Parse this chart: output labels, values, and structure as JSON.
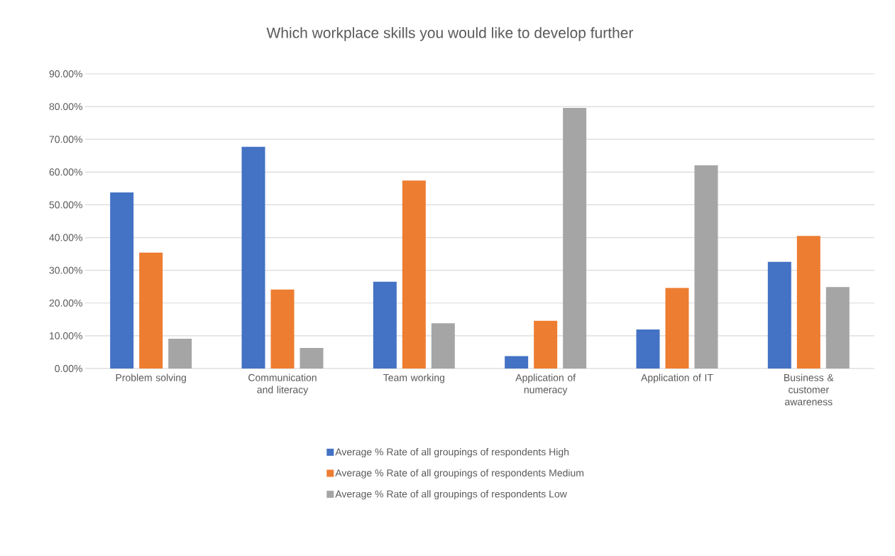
{
  "chart_data": {
    "type": "bar",
    "title": "Which workplace skills you would like to develop further",
    "categories": [
      "Problem solving",
      "Communication and literacy",
      "Team working",
      "Application of numeracy",
      "Application of IT",
      "Business & customer awareness"
    ],
    "series": [
      {
        "name": "Average % Rate of all groupings of respondents High",
        "color": "#4472c4",
        "values": [
          53.8,
          67.7,
          26.5,
          3.8,
          11.9,
          32.6
        ]
      },
      {
        "name": "Average % Rate of all groupings of respondents Medium",
        "color": "#ed7d31",
        "values": [
          35.4,
          24.1,
          57.4,
          14.6,
          24.6,
          40.5
        ]
      },
      {
        "name": "Average % Rate of all groupings of respondents Low",
        "color": "#a5a5a5",
        "values": [
          9.1,
          6.3,
          13.8,
          79.6,
          62.1,
          24.9
        ]
      }
    ],
    "ylim": [
      0,
      90
    ],
    "yticks": [
      {
        "value": 0,
        "label": "0.00%"
      },
      {
        "value": 10,
        "label": "10.00%"
      },
      {
        "value": 20,
        "label": "20.00%"
      },
      {
        "value": 30,
        "label": "30.00%"
      },
      {
        "value": 40,
        "label": "40.00%"
      },
      {
        "value": 50,
        "label": "50.00%"
      },
      {
        "value": 60,
        "label": "60.00%"
      },
      {
        "value": 70,
        "label": "70.00%"
      },
      {
        "value": 80,
        "label": "80.00%"
      },
      {
        "value": 90,
        "label": "90.00%"
      }
    ],
    "grid": "y",
    "legend": "bottom"
  }
}
